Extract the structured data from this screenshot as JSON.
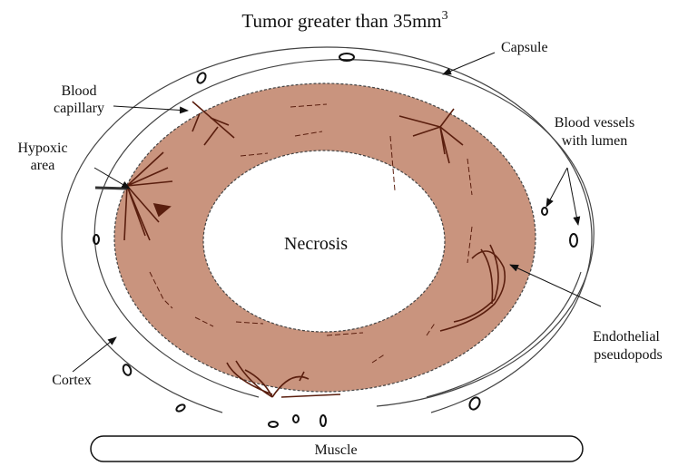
{
  "title": "Tumor greater than 35mm",
  "title_superscript": "3",
  "labels": {
    "capsule": "Capsule",
    "blood_capillary": [
      "Blood",
      "capillary"
    ],
    "hypoxic_area": [
      "Hypoxic",
      "area"
    ],
    "blood_vessels": [
      "Blood vessels",
      "with lumen"
    ],
    "necrosis": "Necrosis",
    "endothelial": [
      "Endothelial",
      "pseudopods"
    ],
    "cortex": "Cortex",
    "muscle": "Muscle"
  },
  "colors": {
    "tumor_ring": "#c9947e",
    "vessels": "#5a1e0e",
    "outline": "#333333"
  }
}
